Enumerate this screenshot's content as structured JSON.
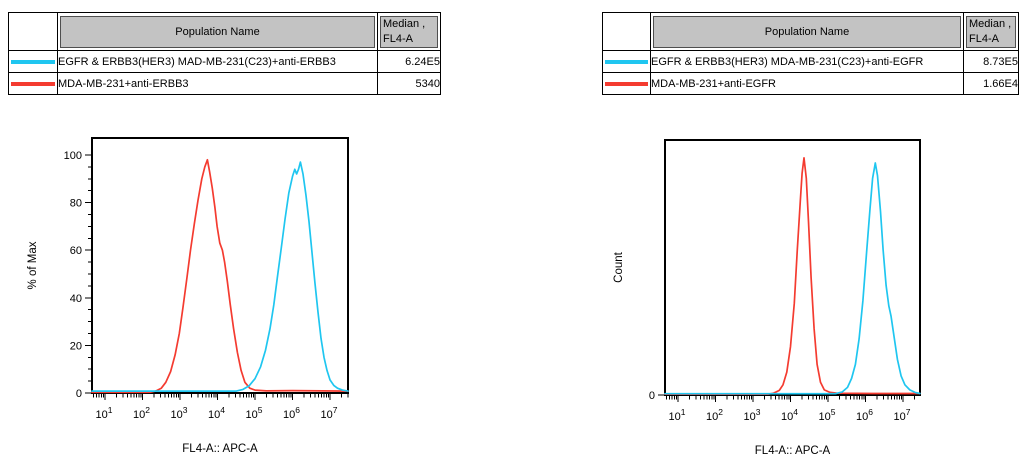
{
  "colors": {
    "cyan": "#1FC6F0",
    "red": "#F43B30",
    "table_header_gray": "#C3C3C3",
    "axis_black": "#000000",
    "background": "#FFFFFF"
  },
  "panels": [
    {
      "table": {
        "header": {
          "population": "Population Name",
          "median_line1": "Median ,",
          "median_line2": "FL4-A"
        },
        "rows": [
          {
            "swatch_color": "#1FC6F0",
            "name": "EGFR & ERBB3(HER3) MAD-MB-231(C23)+anti-ERBB3",
            "median": "6.24E5"
          },
          {
            "swatch_color": "#F43B30",
            "name": "MDA-MB-231+anti-ERBB3",
            "median": "5340"
          }
        ]
      }
    },
    {
      "table": {
        "header": {
          "population": "Population Name",
          "median_line1": "Median ,",
          "median_line2": "FL4-A"
        },
        "rows": [
          {
            "swatch_color": "#1FC6F0",
            "name": "EGFR & ERBB3(HER3) MDA-MB-231(C23)+anti-EGFR",
            "median": "8.73E5"
          },
          {
            "swatch_color": "#F43B30",
            "name": "MDA-MB-231+anti-EGFR",
            "median": "1.66E4"
          }
        ]
      }
    }
  ],
  "chart_data": [
    {
      "type": "line",
      "subtype": "flow-cytometry-histogram-overlay",
      "title": "",
      "xlabel": "FL4-A:: APC-A",
      "ylabel": "% of Max",
      "x_scale": "log10",
      "x_tick_decades": [
        1,
        2,
        3,
        4,
        5,
        6,
        7
      ],
      "x_minor_ticks": true,
      "x_range_log10": [
        0.65,
        7.48
      ],
      "y_ticks": [
        0,
        20,
        40,
        60,
        80,
        100
      ],
      "y_minor_step": 5,
      "ylim": [
        0,
        107
      ],
      "grid": false,
      "legend_position": "table-above",
      "series": [
        {
          "name": "EGFR & ERBB3(HER3) MAD-MB-231(C23)+anti-ERBB3",
          "color_key": "cyan",
          "median": "6.24E5",
          "points": [
            [
              0.65,
              0.8
            ],
            [
              4.5,
              0.8
            ],
            [
              4.68,
              1.5
            ],
            [
              4.84,
              3
            ],
            [
              5.0,
              6
            ],
            [
              5.15,
              11
            ],
            [
              5.28,
              18
            ],
            [
              5.4,
              27
            ],
            [
              5.5,
              37
            ],
            [
              5.6,
              49
            ],
            [
              5.7,
              61
            ],
            [
              5.8,
              73
            ],
            [
              5.9,
              84
            ],
            [
              6.0,
              91
            ],
            [
              6.06,
              94
            ],
            [
              6.11,
              92
            ],
            [
              6.16,
              94
            ],
            [
              6.21,
              97
            ],
            [
              6.28,
              92
            ],
            [
              6.36,
              83
            ],
            [
              6.44,
              72
            ],
            [
              6.52,
              59
            ],
            [
              6.6,
              46
            ],
            [
              6.68,
              34
            ],
            [
              6.76,
              23
            ],
            [
              6.84,
              15
            ],
            [
              6.92,
              9.5
            ],
            [
              7.0,
              5.5
            ],
            [
              7.1,
              3.2
            ],
            [
              7.2,
              2
            ],
            [
              7.33,
              1.2
            ],
            [
              7.48,
              0.8
            ]
          ]
        },
        {
          "name": "MDA-MB-231+anti-ERBB3",
          "color_key": "red",
          "median": "5340",
          "points": [
            [
              0.65,
              0.3
            ],
            [
              2.2,
              0.3
            ],
            [
              2.35,
              0.8
            ],
            [
              2.5,
              2
            ],
            [
              2.62,
              4.5
            ],
            [
              2.75,
              9
            ],
            [
              2.87,
              16
            ],
            [
              2.98,
              25
            ],
            [
              3.08,
              36
            ],
            [
              3.18,
              48
            ],
            [
              3.28,
              60
            ],
            [
              3.38,
              71
            ],
            [
              3.48,
              81
            ],
            [
              3.58,
              90
            ],
            [
              3.66,
              95
            ],
            [
              3.73,
              98
            ],
            [
              3.79,
              93
            ],
            [
              3.86,
              86
            ],
            [
              3.93,
              78
            ],
            [
              3.99,
              70
            ],
            [
              4.06,
              63
            ],
            [
              4.13,
              60
            ],
            [
              4.19,
              55
            ],
            [
              4.26,
              47
            ],
            [
              4.34,
              37
            ],
            [
              4.43,
              27
            ],
            [
              4.53,
              17
            ],
            [
              4.63,
              9.5
            ],
            [
              4.73,
              4.5
            ],
            [
              4.86,
              2
            ],
            [
              5.0,
              1.2
            ],
            [
              5.3,
              0.9
            ],
            [
              6.0,
              1.0
            ],
            [
              6.8,
              0.9
            ],
            [
              7.48,
              0.8
            ]
          ]
        }
      ]
    },
    {
      "type": "line",
      "subtype": "flow-cytometry-histogram-overlay",
      "title": "",
      "xlabel": "FL4-A:: APC-A",
      "ylabel": "Count",
      "x_scale": "log10",
      "x_tick_decades": [
        1,
        2,
        3,
        4,
        5,
        6,
        7
      ],
      "x_minor_ticks": true,
      "x_range_log10": [
        0.65,
        7.45
      ],
      "y_ticks": [
        0
      ],
      "y_minor_step": 0,
      "ylim": [
        0,
        100
      ],
      "y_units": "relative count (axis unlabeled except 0)",
      "grid": false,
      "legend_position": "table-above",
      "series": [
        {
          "name": "EGFR & ERBB3(HER3) MDA-MB-231(C23)+anti-EGFR",
          "color_key": "cyan",
          "median": "8.73E5",
          "points": [
            [
              0.65,
              0.5
            ],
            [
              5.2,
              0.5
            ],
            [
              5.38,
              1.2
            ],
            [
              5.52,
              3
            ],
            [
              5.63,
              6.5
            ],
            [
              5.73,
              12
            ],
            [
              5.83,
              22
            ],
            [
              5.93,
              37
            ],
            [
              6.03,
              56
            ],
            [
              6.12,
              73
            ],
            [
              6.19,
              85
            ],
            [
              6.26,
              91
            ],
            [
              6.32,
              86
            ],
            [
              6.4,
              72
            ],
            [
              6.47,
              57
            ],
            [
              6.55,
              43
            ],
            [
              6.62,
              35
            ],
            [
              6.68,
              31
            ],
            [
              6.76,
              23
            ],
            [
              6.85,
              14
            ],
            [
              6.95,
              7.5
            ],
            [
              7.05,
              4
            ],
            [
              7.18,
              2
            ],
            [
              7.32,
              1
            ],
            [
              7.45,
              0.6
            ]
          ]
        },
        {
          "name": "MDA-MB-231+anti-EGFR",
          "color_key": "red",
          "median": "1.66E4",
          "points": [
            [
              0.65,
              0.3
            ],
            [
              3.4,
              0.3
            ],
            [
              3.55,
              0.7
            ],
            [
              3.7,
              1.8
            ],
            [
              3.8,
              4
            ],
            [
              3.9,
              9
            ],
            [
              4.0,
              19
            ],
            [
              4.1,
              36
            ],
            [
              4.18,
              57
            ],
            [
              4.26,
              76
            ],
            [
              4.31,
              87
            ],
            [
              4.36,
              93
            ],
            [
              4.42,
              85
            ],
            [
              4.48,
              68
            ],
            [
              4.55,
              46
            ],
            [
              4.63,
              26
            ],
            [
              4.71,
              12
            ],
            [
              4.8,
              5
            ],
            [
              4.9,
              2
            ],
            [
              5.05,
              1
            ],
            [
              5.25,
              0.7
            ],
            [
              6.2,
              0.6
            ],
            [
              7.45,
              0.6
            ]
          ]
        }
      ]
    }
  ]
}
